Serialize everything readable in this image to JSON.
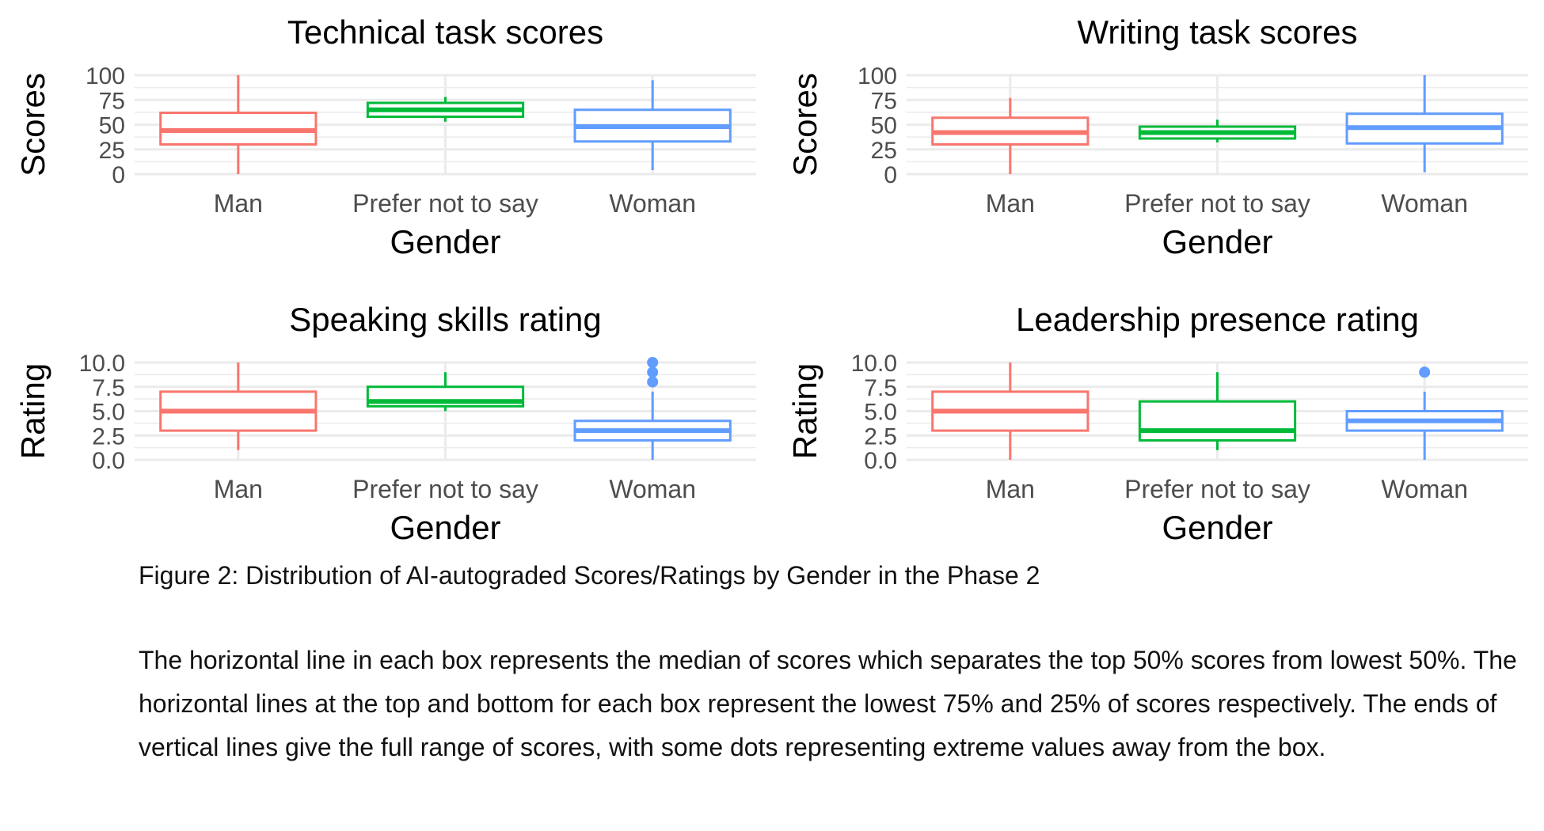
{
  "figure_caption": "Figure 2: Distribution of AI-autograded Scores/Ratings by Gender in the Phase 2",
  "figure_note": "The horizontal line in each box represents the median of scores which separates the top 50% scores from lowest 50%. The horizontal lines at the top and bottom for each box represent the lowest 75% and 25% of scores respectively. The ends of vertical lines give the full range of scores, with some dots representing extreme values away from the box.",
  "colors": {
    "Man": "#F8766D",
    "Prefer not to say": "#00BA38",
    "Woman": "#619CFF",
    "grid": "#ebebeb"
  },
  "chart_data": [
    {
      "type": "box",
      "title": "Technical task scores",
      "xlabel": "Gender",
      "ylabel": "Scores",
      "ylim": [
        0,
        100
      ],
      "yticks": [
        0,
        25,
        50,
        75,
        100
      ],
      "ytick_labels": [
        "0",
        "25",
        "50",
        "75",
        "100"
      ],
      "categories": [
        "Man",
        "Prefer not to say",
        "Woman"
      ],
      "boxes": [
        {
          "category": "Man",
          "min": 0,
          "q1": 30,
          "median": 44,
          "q3": 62,
          "max": 100,
          "outliers": []
        },
        {
          "category": "Prefer not to say",
          "min": 53,
          "q1": 58,
          "median": 65,
          "q3": 72,
          "max": 78,
          "outliers": []
        },
        {
          "category": "Woman",
          "min": 4,
          "q1": 33,
          "median": 48,
          "q3": 65,
          "max": 95,
          "outliers": []
        }
      ]
    },
    {
      "type": "box",
      "title": "Writing task scores",
      "xlabel": "Gender",
      "ylabel": "Scores",
      "ylim": [
        0,
        100
      ],
      "yticks": [
        0,
        25,
        50,
        75,
        100
      ],
      "ytick_labels": [
        "0",
        "25",
        "50",
        "75",
        "100"
      ],
      "categories": [
        "Man",
        "Prefer not to say",
        "Woman"
      ],
      "boxes": [
        {
          "category": "Man",
          "min": 0,
          "q1": 30,
          "median": 42,
          "q3": 57,
          "max": 77,
          "outliers": []
        },
        {
          "category": "Prefer not to say",
          "min": 32,
          "q1": 36,
          "median": 42,
          "q3": 48,
          "max": 55,
          "outliers": []
        },
        {
          "category": "Woman",
          "min": 2,
          "q1": 31,
          "median": 47,
          "q3": 61,
          "max": 100,
          "outliers": []
        }
      ]
    },
    {
      "type": "box",
      "title": "Speaking skills rating",
      "xlabel": "Gender",
      "ylabel": "Rating",
      "ylim": [
        0,
        10
      ],
      "yticks": [
        0,
        2.5,
        5,
        7.5,
        10
      ],
      "ytick_labels": [
        "0.0",
        "2.5",
        "5.0",
        "7.5",
        "10.0"
      ],
      "categories": [
        "Man",
        "Prefer not to say",
        "Woman"
      ],
      "boxes": [
        {
          "category": "Man",
          "min": 1,
          "q1": 3,
          "median": 5,
          "q3": 7,
          "max": 10,
          "outliers": []
        },
        {
          "category": "Prefer not to say",
          "min": 5,
          "q1": 5.5,
          "median": 6,
          "q3": 7.5,
          "max": 9,
          "outliers": []
        },
        {
          "category": "Woman",
          "min": 0,
          "q1": 2,
          "median": 3,
          "q3": 4,
          "max": 7,
          "outliers": [
            8,
            9,
            10
          ]
        }
      ]
    },
    {
      "type": "box",
      "title": "Leadership presence rating",
      "xlabel": "Gender",
      "ylabel": "Rating",
      "ylim": [
        0,
        10
      ],
      "yticks": [
        0,
        2.5,
        5,
        7.5,
        10
      ],
      "ytick_labels": [
        "0.0",
        "2.5",
        "5.0",
        "7.5",
        "10.0"
      ],
      "categories": [
        "Man",
        "Prefer not to say",
        "Woman"
      ],
      "boxes": [
        {
          "category": "Man",
          "min": 0,
          "q1": 3,
          "median": 5,
          "q3": 7,
          "max": 10,
          "outliers": []
        },
        {
          "category": "Prefer not to say",
          "min": 1,
          "q1": 2,
          "median": 3,
          "q3": 6,
          "max": 9,
          "outliers": []
        },
        {
          "category": "Woman",
          "min": 0,
          "q1": 3,
          "median": 4,
          "q3": 5,
          "max": 7,
          "outliers": [
            9
          ]
        }
      ]
    }
  ]
}
